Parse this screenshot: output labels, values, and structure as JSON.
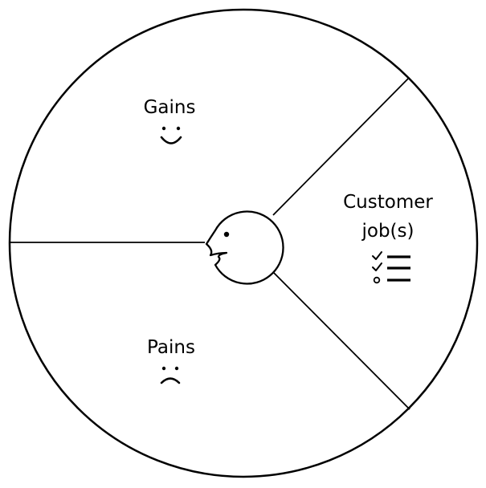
{
  "segments": {
    "gains": {
      "label": "Gains",
      "icon": "smile-icon"
    },
    "pains": {
      "label": "Pains",
      "icon": "frown-icon"
    },
    "jobs": {
      "label_line1": "Customer",
      "label_line2": "job(s)",
      "icon": "checklist-icon"
    }
  },
  "center": {
    "icon": "customer-face-icon"
  },
  "colors": {
    "stroke": "#000000",
    "background": "#ffffff"
  }
}
